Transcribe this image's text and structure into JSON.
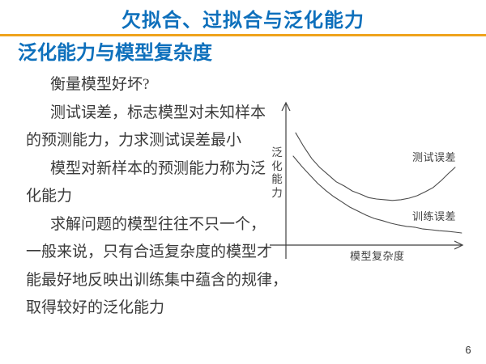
{
  "slide": {
    "title": "欠拟合、过拟合与泛化能力",
    "subtitle": "泛化能力与模型复杂度",
    "page_number": "6",
    "colors": {
      "accent_blue": "#0E70BC",
      "divider_gold": "#EFA31C",
      "body_text": "#3A3A3A",
      "chart_ink": "#464646"
    }
  },
  "body": {
    "lines": [
      {
        "text": "衡量模型好坏?",
        "indent": true
      },
      {
        "text": "测试误差，标志模型对未知样本",
        "indent": true
      },
      {
        "text": "的预测能力，力求测试误差最小",
        "indent": false
      },
      {
        "text": "模型对新样本的预测能力称为泛",
        "indent": true
      },
      {
        "text": "化能力",
        "indent": false
      },
      {
        "text": "求解问题的模型往往不只一个，",
        "indent": true
      },
      {
        "text": "一般来说，只有合适复杂度的模型才",
        "indent": false
      },
      {
        "text": "能最好地反映出训练集中蕴含的规律，",
        "indent": false
      },
      {
        "text": "取得较好的泛化能力",
        "indent": false
      }
    ]
  },
  "chart_data": {
    "type": "line",
    "title": "",
    "xlabel": "模型复杂度",
    "ylabel": "泛化能力",
    "axis_style": "conceptual arrows, no ticks, no gridlines",
    "legend_position": "inline labels beside curves",
    "series": [
      {
        "name": "测试误差",
        "shape": "U-shaped: error decreases then increases with model complexity",
        "points": [
          [
            0.055,
            0.78
          ],
          [
            0.1,
            0.685
          ],
          [
            0.146,
            0.6
          ],
          [
            0.19,
            0.54
          ],
          [
            0.237,
            0.49
          ],
          [
            0.283,
            0.44
          ],
          [
            0.329,
            0.41
          ],
          [
            0.374,
            0.376
          ],
          [
            0.42,
            0.354
          ],
          [
            0.466,
            0.33
          ],
          [
            0.51,
            0.32
          ],
          [
            0.557,
            0.315
          ],
          [
            0.6,
            0.31
          ],
          [
            0.648,
            0.315
          ],
          [
            0.694,
            0.326
          ],
          [
            0.74,
            0.343
          ],
          [
            0.785,
            0.37
          ],
          [
            0.83,
            0.4
          ],
          [
            0.877,
            0.45
          ],
          [
            0.913,
            0.494
          ],
          [
            0.954,
            0.54
          ]
        ]
      },
      {
        "name": "训练误差",
        "shape": "monotonically decreasing toward an asymptote",
        "points": [
          [
            0.041,
            0.618
          ],
          [
            0.087,
            0.55
          ],
          [
            0.132,
            0.49
          ],
          [
            0.178,
            0.43
          ],
          [
            0.224,
            0.38
          ],
          [
            0.269,
            0.337
          ],
          [
            0.315,
            0.3
          ],
          [
            0.36,
            0.264
          ],
          [
            0.406,
            0.236
          ],
          [
            0.452,
            0.208
          ],
          [
            0.498,
            0.185
          ],
          [
            0.543,
            0.17
          ],
          [
            0.59,
            0.152
          ],
          [
            0.635,
            0.14
          ],
          [
            0.68,
            0.13
          ],
          [
            0.726,
            0.124
          ],
          [
            0.772,
            0.112
          ],
          [
            0.817,
            0.107
          ],
          [
            0.863,
            0.1
          ],
          [
            0.91,
            0.096
          ],
          [
            0.954,
            0.09
          ],
          [
            0.99,
            0.084
          ]
        ]
      }
    ]
  }
}
